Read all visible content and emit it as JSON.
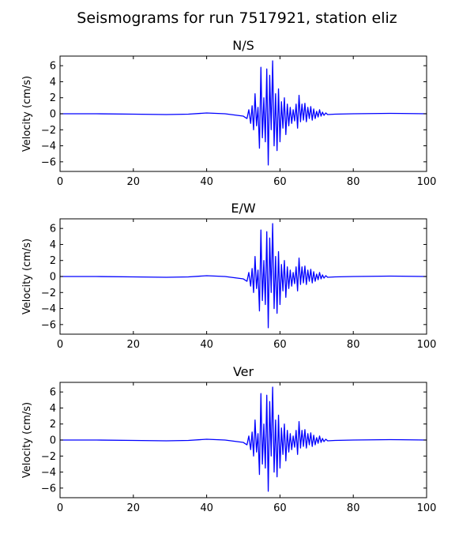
{
  "title": "Seismograms for run 7517921, station eliz",
  "chart_data": [
    {
      "type": "line",
      "title": "N/S",
      "xlabel": "",
      "ylabel": "Velocity (cm/s)",
      "xlim": [
        0,
        100
      ],
      "ylim": [
        -7.2,
        7.2
      ],
      "xticks": [
        0,
        20,
        40,
        60,
        80,
        100
      ],
      "yticks": [
        -6,
        -4,
        -2,
        0,
        2,
        4,
        6
      ],
      "grid": false,
      "series": [
        {
          "color": "#0000ff",
          "x": [
            0,
            10,
            20,
            29,
            35,
            40,
            45,
            50,
            51,
            51.5,
            52,
            52.4,
            52.8,
            53.2,
            53.6,
            54.0,
            54.4,
            54.8,
            55.2,
            55.6,
            56.0,
            56.4,
            56.8,
            57.2,
            57.6,
            58.0,
            58.4,
            58.8,
            59.2,
            59.6,
            60.0,
            60.4,
            60.8,
            61.2,
            61.6,
            62.0,
            62.4,
            62.8,
            63.2,
            63.6,
            64.0,
            64.4,
            64.8,
            65.2,
            65.6,
            66.0,
            66.4,
            66.8,
            67.2,
            67.6,
            68.0,
            68.4,
            68.8,
            69.2,
            69.6,
            70.0,
            70.4,
            70.8,
            71.2,
            71.6,
            72.0,
            72.5,
            73.0,
            75,
            80,
            90,
            100
          ],
          "y": [
            0,
            0,
            -0.05,
            -0.1,
            -0.05,
            0.1,
            0.0,
            -0.3,
            -0.6,
            0.5,
            -1.2,
            1.0,
            -2.0,
            2.5,
            -1.5,
            0.8,
            -4.3,
            5.8,
            -3.0,
            2.0,
            -3.5,
            5.6,
            -6.4,
            4.8,
            -2.0,
            6.6,
            -4.0,
            2.5,
            -4.6,
            3.1,
            -3.5,
            1.5,
            -1.8,
            2.0,
            -2.6,
            1.2,
            -1.5,
            0.8,
            -1.2,
            0.5,
            -0.9,
            1.2,
            -1.8,
            2.3,
            -1.0,
            1.2,
            -0.8,
            1.3,
            -1.0,
            0.8,
            -0.6,
            0.9,
            -0.8,
            0.6,
            -0.6,
            0.3,
            -0.4,
            0.5,
            -0.3,
            0.2,
            -0.2,
            0.1,
            -0.1,
            -0.05,
            0,
            0.05,
            0
          ]
        }
      ]
    },
    {
      "type": "line",
      "title": "E/W",
      "xlabel": "",
      "ylabel": "Velocity (cm/s)",
      "xlim": [
        0,
        100
      ],
      "ylim": [
        -7.2,
        7.2
      ],
      "xticks": [
        0,
        20,
        40,
        60,
        80,
        100
      ],
      "yticks": [
        -6,
        -4,
        -2,
        0,
        2,
        4,
        6
      ],
      "grid": false,
      "series": [
        {
          "color": "#0000ff",
          "x": [
            0,
            10,
            20,
            29,
            35,
            40,
            45,
            50,
            51,
            51.5,
            52,
            52.4,
            52.8,
            53.2,
            53.6,
            54.0,
            54.4,
            54.8,
            55.2,
            55.6,
            56.0,
            56.4,
            56.8,
            57.2,
            57.6,
            58.0,
            58.4,
            58.8,
            59.2,
            59.6,
            60.0,
            60.4,
            60.8,
            61.2,
            61.6,
            62.0,
            62.4,
            62.8,
            63.2,
            63.6,
            64.0,
            64.4,
            64.8,
            65.2,
            65.6,
            66.0,
            66.4,
            66.8,
            67.2,
            67.6,
            68.0,
            68.4,
            68.8,
            69.2,
            69.6,
            70.0,
            70.4,
            70.8,
            71.2,
            71.6,
            72.0,
            72.5,
            73.0,
            75,
            80,
            90,
            100
          ],
          "y": [
            0,
            0,
            -0.05,
            -0.1,
            -0.05,
            0.1,
            0.0,
            -0.3,
            -0.6,
            0.5,
            -1.2,
            1.0,
            -2.0,
            2.5,
            -1.5,
            0.8,
            -4.3,
            5.8,
            -3.0,
            2.0,
            -3.5,
            5.6,
            -6.4,
            4.8,
            -2.0,
            6.6,
            -4.0,
            2.5,
            -4.6,
            3.1,
            -3.5,
            1.5,
            -1.8,
            2.0,
            -2.6,
            1.2,
            -1.5,
            0.8,
            -1.2,
            0.5,
            -0.9,
            1.2,
            -1.8,
            2.3,
            -1.0,
            1.2,
            -0.8,
            1.3,
            -1.0,
            0.8,
            -0.6,
            0.9,
            -0.8,
            0.6,
            -0.6,
            0.3,
            -0.4,
            0.5,
            -0.3,
            0.2,
            -0.2,
            0.1,
            -0.1,
            -0.05,
            0,
            0.05,
            0
          ]
        }
      ]
    },
    {
      "type": "line",
      "title": "Ver",
      "xlabel": "",
      "ylabel": "Velocity (cm/s)",
      "xlim": [
        0,
        100
      ],
      "ylim": [
        -7.2,
        7.2
      ],
      "xticks": [
        0,
        20,
        40,
        60,
        80,
        100
      ],
      "yticks": [
        -6,
        -4,
        -2,
        0,
        2,
        4,
        6
      ],
      "grid": false,
      "series": [
        {
          "color": "#0000ff",
          "x": [
            0,
            10,
            20,
            29,
            35,
            40,
            45,
            50,
            51,
            51.5,
            52,
            52.4,
            52.8,
            53.2,
            53.6,
            54.0,
            54.4,
            54.8,
            55.2,
            55.6,
            56.0,
            56.4,
            56.8,
            57.2,
            57.6,
            58.0,
            58.4,
            58.8,
            59.2,
            59.6,
            60.0,
            60.4,
            60.8,
            61.2,
            61.6,
            62.0,
            62.4,
            62.8,
            63.2,
            63.6,
            64.0,
            64.4,
            64.8,
            65.2,
            65.6,
            66.0,
            66.4,
            66.8,
            67.2,
            67.6,
            68.0,
            68.4,
            68.8,
            69.2,
            69.6,
            70.0,
            70.4,
            70.8,
            71.2,
            71.6,
            72.0,
            72.5,
            73.0,
            75,
            80,
            90,
            100
          ],
          "y": [
            0,
            0,
            -0.05,
            -0.1,
            -0.05,
            0.1,
            0.0,
            -0.3,
            -0.6,
            0.5,
            -1.2,
            1.0,
            -2.0,
            2.5,
            -1.5,
            0.8,
            -4.3,
            5.8,
            -3.0,
            2.0,
            -3.5,
            5.6,
            -6.4,
            4.8,
            -2.0,
            6.6,
            -4.0,
            2.5,
            -4.6,
            3.1,
            -3.5,
            1.5,
            -1.8,
            2.0,
            -2.6,
            1.2,
            -1.5,
            0.8,
            -1.2,
            0.5,
            -0.9,
            1.2,
            -1.8,
            2.3,
            -1.0,
            1.2,
            -0.8,
            1.3,
            -1.0,
            0.8,
            -0.6,
            0.9,
            -0.8,
            0.6,
            -0.6,
            0.3,
            -0.4,
            0.5,
            -0.3,
            0.2,
            -0.2,
            0.1,
            -0.1,
            -0.05,
            0,
            0.05,
            0
          ]
        }
      ]
    }
  ]
}
